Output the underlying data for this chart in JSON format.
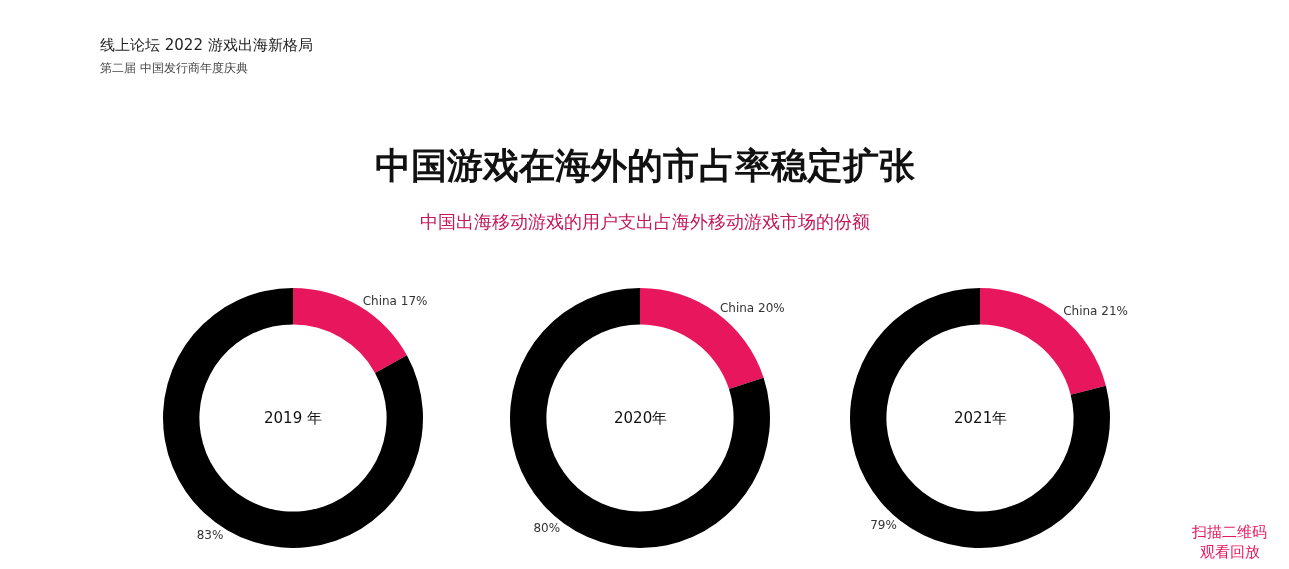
{
  "chart_data": [
    {
      "type": "other",
      "title": "中国游戏在海外的市占率稳定扩张",
      "subtitle": "中国出海移动游戏的用户支出占海外移动游戏市场的份额",
      "annotations": [
        "线上论坛 2022 游戏出海新格局",
        "第二届 中国发行商年度庆典",
        "扫描二维码",
        "观看回放"
      ]
    },
    {
      "type": "donut",
      "title": "2019 年",
      "categories": [
        "China",
        null
      ],
      "values": [
        17,
        83
      ],
      "value_labels": [
        "17%",
        "83%"
      ],
      "colors": [
        "#e8175d",
        "#000000"
      ],
      "legend": false
    },
    {
      "type": "donut",
      "title": "2020年",
      "categories": [
        "China",
        null
      ],
      "values": [
        20,
        80
      ],
      "value_labels": [
        "20%",
        "80%"
      ],
      "colors": [
        "#e8175d",
        "#000000"
      ],
      "legend": false
    },
    {
      "type": "donut",
      "title": "2021年",
      "categories": [
        "China",
        null
      ],
      "values": [
        21,
        79
      ],
      "value_labels": [
        "21%",
        "79%"
      ],
      "colors": [
        "#e8175d",
        "#000000"
      ],
      "legend": false
    }
  ]
}
